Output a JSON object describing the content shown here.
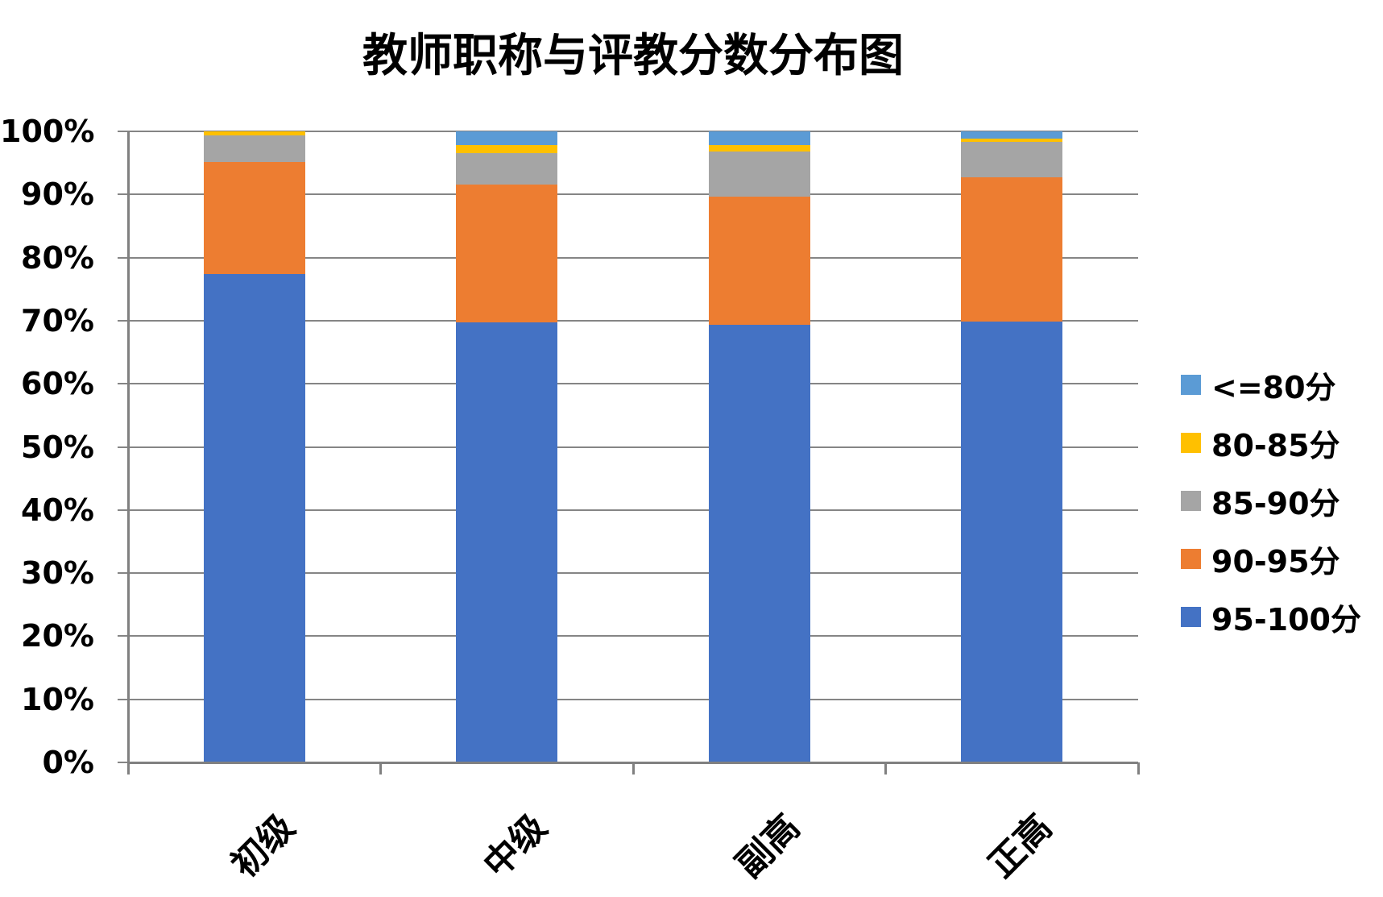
{
  "chart_data": {
    "type": "bar",
    "stacked": true,
    "units": "percent",
    "title": "教师职称与评教分数分布图",
    "categories": [
      "初级",
      "中级",
      "副高",
      "正高"
    ],
    "series": [
      {
        "name": "95-100分",
        "color": "#4472C4",
        "values": [
          77.4,
          69.7,
          69.3,
          69.8
        ]
      },
      {
        "name": "90-95分",
        "color": "#ED7D31",
        "values": [
          17.7,
          21.9,
          20.3,
          22.9
        ]
      },
      {
        "name": "85-90分",
        "color": "#A5A5A5",
        "values": [
          4.3,
          4.9,
          7.2,
          5.6
        ]
      },
      {
        "name": "80-85分",
        "color": "#FFC000",
        "values": [
          0.6,
          1.3,
          1.0,
          0.6
        ]
      },
      {
        "name": "<=80分",
        "color": "#5B9BD5",
        "values": [
          0.0,
          2.2,
          2.2,
          1.1
        ]
      }
    ],
    "y_axis": {
      "min": 0,
      "max": 100,
      "tick_labels": [
        "0%",
        "10%",
        "20%",
        "30%",
        "40%",
        "50%",
        "60%",
        "70%",
        "80%",
        "90%",
        "100%"
      ]
    },
    "x_axis": {
      "tick_labels": [
        "初级",
        "中级",
        "副高",
        "正高"
      ]
    },
    "legend": {
      "position": "right",
      "order_top_to_bottom": [
        "<=80分",
        "80-85分",
        "85-90分",
        "90-95分",
        "95-100分"
      ]
    },
    "grid": true
  },
  "colors": {
    "gridline": "#858585",
    "axis": "#808080",
    "text": "#000000",
    "background": "#FFFFFF"
  }
}
